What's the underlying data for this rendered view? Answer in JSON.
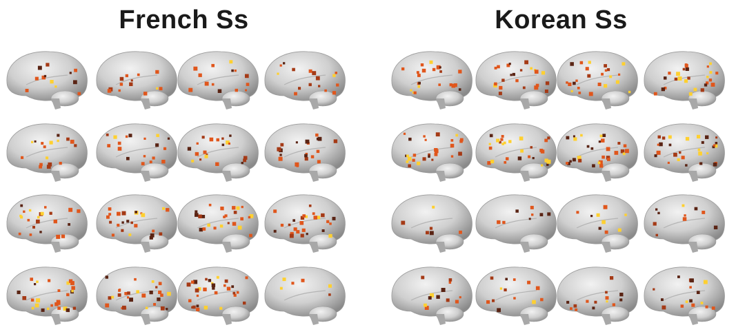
{
  "groups": [
    {
      "title": "French Ss",
      "subjects": 16
    },
    {
      "title": "Korean Ss",
      "subjects": 16
    }
  ],
  "colors": {
    "brain_fill": "#c8c8c8",
    "activation_dark": "#5a2414",
    "activation_mid": "#e0561c",
    "activation_bright": "#ffd030",
    "title": "#1a1a1a"
  }
}
